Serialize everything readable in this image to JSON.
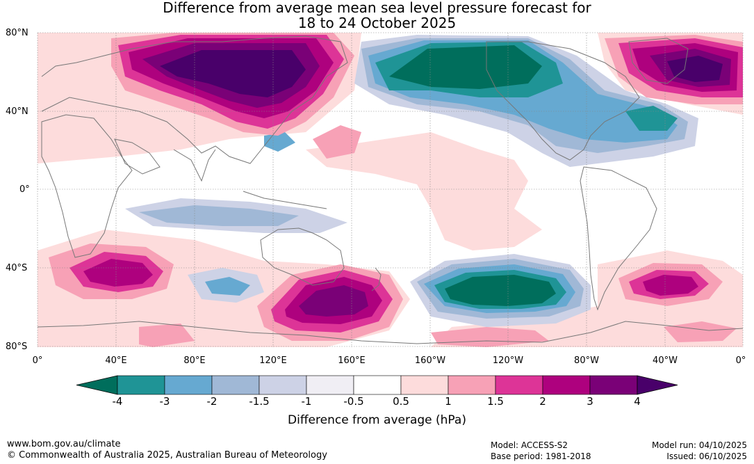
{
  "title": {
    "line1": "Difference from average mean sea level pressure forecast for",
    "line2": "18 to 24 October 2025"
  },
  "lat_ticks": [
    "80°N",
    "40°N",
    "0°",
    "40°S",
    "80°S"
  ],
  "lon_ticks": [
    "0°",
    "40°E",
    "80°E",
    "120°E",
    "160°E",
    "160°W",
    "120°W",
    "80°W",
    "40°W",
    "0°"
  ],
  "colorbar": {
    "ticks": [
      "-4",
      "-3",
      "-2",
      "-1.5",
      "-1",
      "-0.5",
      "0.5",
      "1",
      "1.5",
      "2",
      "3",
      "4"
    ],
    "colors": [
      "#006e5c",
      "#1f9496",
      "#66a9d1",
      "#a0b8d6",
      "#cdd2e6",
      "#f0eef4",
      "#ffffff",
      "#fddcdc",
      "#f7a1b6",
      "#dd3497",
      "#ae017e",
      "#7a0177",
      "#49006a"
    ],
    "label": "Difference from average (hPa)"
  },
  "footer": {
    "site": "www.bom.gov.au/climate",
    "copyright": "© Commonwealth of Australia 2025, Australian Bureau of Meteorology",
    "model": "Model: ACCESS-S2",
    "base_period": "Base period: 1981-2018",
    "model_run": "Model run: 04/10/2025",
    "issued": "Issued: 06/10/2025"
  }
}
